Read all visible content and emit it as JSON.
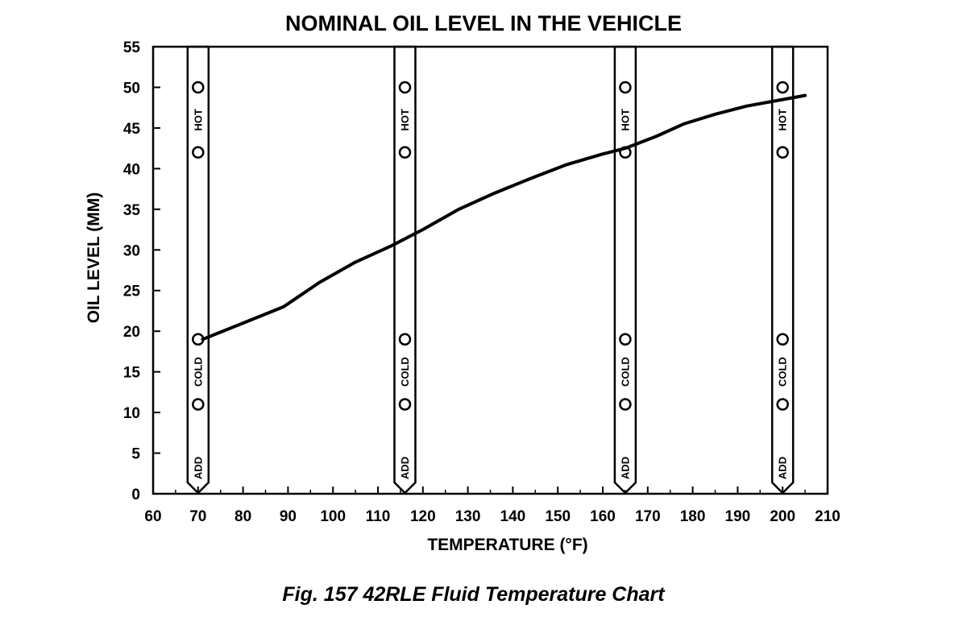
{
  "chart_data": {
    "type": "line",
    "title": "NOMINAL OIL LEVEL IN THE VEHICLE",
    "xlabel": "TEMPERATURE (°F)",
    "ylabel": "OIL LEVEL (MM)",
    "xlim": [
      60,
      210
    ],
    "ylim": [
      0,
      55
    ],
    "x_ticks": [
      60,
      70,
      80,
      90,
      100,
      110,
      120,
      130,
      140,
      150,
      160,
      170,
      180,
      190,
      200,
      210
    ],
    "y_ticks": [
      0,
      5,
      10,
      15,
      20,
      25,
      30,
      35,
      40,
      45,
      50,
      55
    ],
    "grid": false,
    "series": [
      {
        "x": [
          71,
          80,
          89,
          97,
          105,
          113,
          120,
          128,
          136,
          144,
          152,
          160,
          165,
          172,
          178,
          185,
          192,
          200,
          205
        ],
        "y": [
          19,
          21,
          23,
          26,
          28.5,
          30.5,
          32.5,
          35,
          37,
          38.8,
          40.5,
          41.8,
          42.5,
          44,
          45.5,
          46.7,
          47.7,
          48.5,
          49
        ]
      }
    ],
    "dipsticks": [
      {
        "temperature": 70,
        "labels": {
          "hot": "HOT",
          "cold": "COLD",
          "add": "ADD"
        }
      },
      {
        "temperature": 116,
        "labels": {
          "hot": "HOT",
          "cold": "COLD",
          "add": "ADD"
        }
      },
      {
        "temperature": 165,
        "labels": {
          "hot": "HOT",
          "cold": "COLD",
          "add": "ADD"
        }
      },
      {
        "temperature": 200,
        "labels": {
          "hot": "HOT",
          "cold": "COLD",
          "add": "ADD"
        }
      }
    ],
    "dipstick_marks": [
      11,
      19,
      42,
      50
    ]
  },
  "caption": "Fig. 157 42RLE Fluid Temperature Chart"
}
